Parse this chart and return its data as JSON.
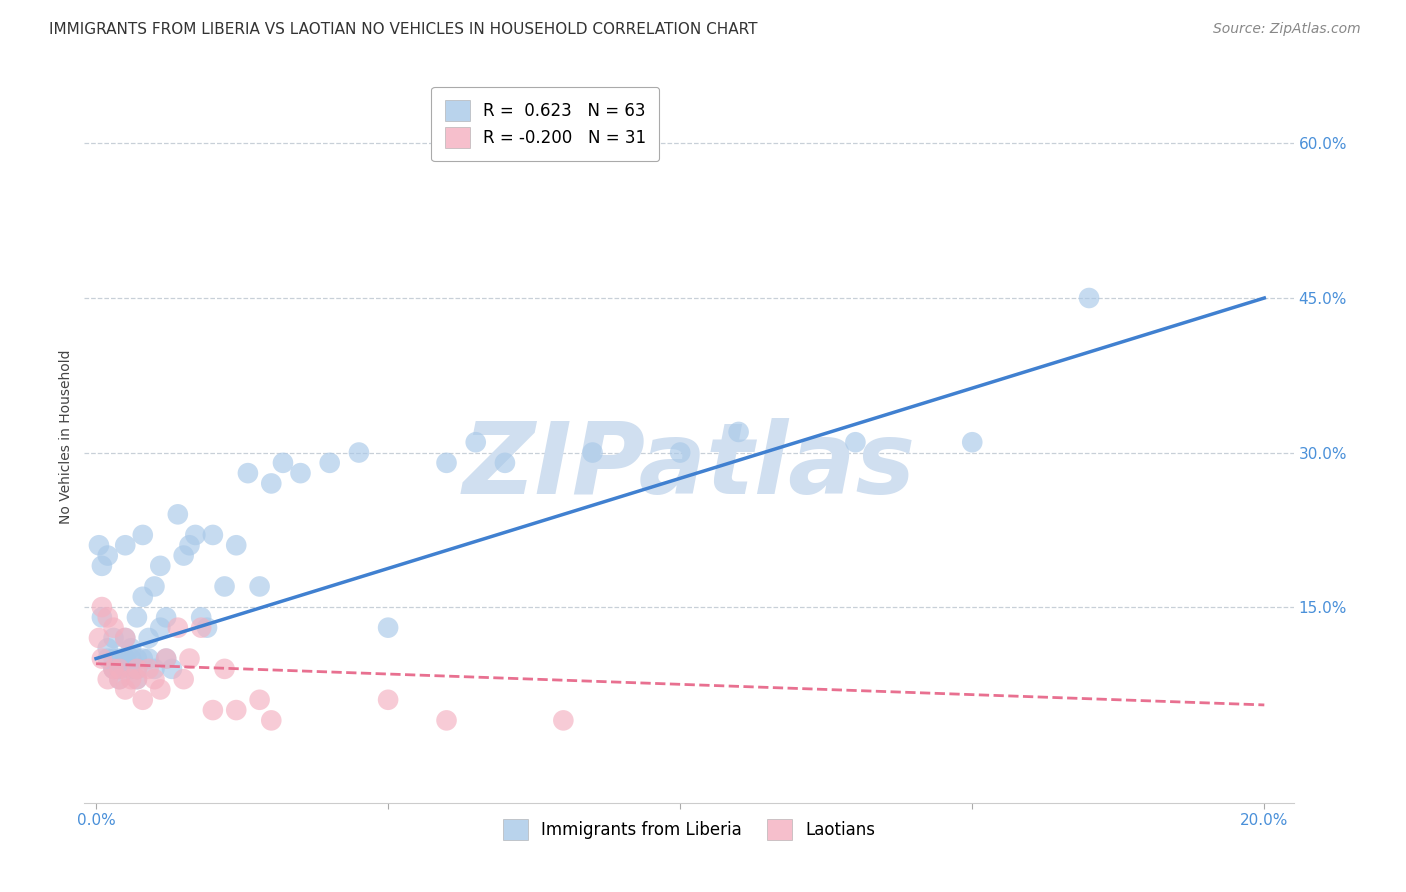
{
  "title": "IMMIGRANTS FROM LIBERIA VS LAOTIAN NO VEHICLES IN HOUSEHOLD CORRELATION CHART",
  "source": "Source: ZipAtlas.com",
  "ylabel": "No Vehicles in Household",
  "xlim": [
    -0.002,
    0.205
  ],
  "ylim": [
    -0.04,
    0.67
  ],
  "y_ticks_right": [
    0.15,
    0.3,
    0.45,
    0.6
  ],
  "y_tick_labels_right": [
    "15.0%",
    "30.0%",
    "45.0%",
    "60.0%"
  ],
  "legend_entries": [
    {
      "label": "R =  0.623   N = 63",
      "color": "#a8c8e8"
    },
    {
      "label": "R = -0.200   N = 31",
      "color": "#f4b0c0"
    }
  ],
  "liberia_color": "#a8c8e8",
  "laotian_color": "#f4b0c0",
  "liberia_trend_color": "#4080d0",
  "laotian_trend_color": "#e87090",
  "watermark": "ZIPatlas",
  "watermark_color": "#d0dff0",
  "liberia_x": [
    0.0005,
    0.001,
    0.001,
    0.002,
    0.002,
    0.002,
    0.003,
    0.003,
    0.003,
    0.003,
    0.004,
    0.004,
    0.004,
    0.004,
    0.005,
    0.005,
    0.005,
    0.005,
    0.006,
    0.006,
    0.006,
    0.007,
    0.007,
    0.007,
    0.007,
    0.008,
    0.008,
    0.008,
    0.009,
    0.009,
    0.01,
    0.01,
    0.011,
    0.011,
    0.012,
    0.012,
    0.013,
    0.014,
    0.015,
    0.016,
    0.017,
    0.018,
    0.019,
    0.02,
    0.022,
    0.024,
    0.026,
    0.028,
    0.03,
    0.032,
    0.035,
    0.04,
    0.045,
    0.05,
    0.06,
    0.065,
    0.07,
    0.085,
    0.1,
    0.11,
    0.13,
    0.15,
    0.17
  ],
  "liberia_y": [
    0.21,
    0.19,
    0.14,
    0.1,
    0.11,
    0.2,
    0.09,
    0.1,
    0.09,
    0.12,
    0.09,
    0.1,
    0.09,
    0.08,
    0.1,
    0.12,
    0.21,
    0.1,
    0.1,
    0.11,
    0.09,
    0.08,
    0.1,
    0.09,
    0.14,
    0.1,
    0.22,
    0.16,
    0.12,
    0.1,
    0.09,
    0.17,
    0.13,
    0.19,
    0.1,
    0.14,
    0.09,
    0.24,
    0.2,
    0.21,
    0.22,
    0.14,
    0.13,
    0.22,
    0.17,
    0.21,
    0.28,
    0.17,
    0.27,
    0.29,
    0.28,
    0.29,
    0.3,
    0.13,
    0.29,
    0.31,
    0.29,
    0.3,
    0.3,
    0.32,
    0.31,
    0.31,
    0.45
  ],
  "laotian_x": [
    0.0005,
    0.001,
    0.001,
    0.002,
    0.002,
    0.003,
    0.003,
    0.004,
    0.004,
    0.005,
    0.005,
    0.006,
    0.007,
    0.007,
    0.008,
    0.009,
    0.01,
    0.011,
    0.012,
    0.014,
    0.015,
    0.016,
    0.018,
    0.02,
    0.022,
    0.024,
    0.028,
    0.03,
    0.05,
    0.06,
    0.08
  ],
  "laotian_y": [
    0.12,
    0.1,
    0.15,
    0.08,
    0.14,
    0.09,
    0.13,
    0.08,
    0.09,
    0.07,
    0.12,
    0.08,
    0.08,
    0.09,
    0.06,
    0.09,
    0.08,
    0.07,
    0.1,
    0.13,
    0.08,
    0.1,
    0.13,
    0.05,
    0.09,
    0.05,
    0.06,
    0.04,
    0.06,
    0.04,
    0.04
  ],
  "liberia_trend_x0": 0.0,
  "liberia_trend_y0": 0.1,
  "liberia_trend_x1": 0.2,
  "liberia_trend_y1": 0.45,
  "laotian_trend_x0": 0.0,
  "laotian_trend_y0": 0.095,
  "laotian_trend_x1": 0.2,
  "laotian_trend_y1": 0.055,
  "background_color": "#ffffff",
  "grid_color": "#c8d0d8",
  "title_fontsize": 11,
  "axis_label_fontsize": 10,
  "tick_fontsize": 11,
  "legend_fontsize": 12,
  "source_fontsize": 10
}
